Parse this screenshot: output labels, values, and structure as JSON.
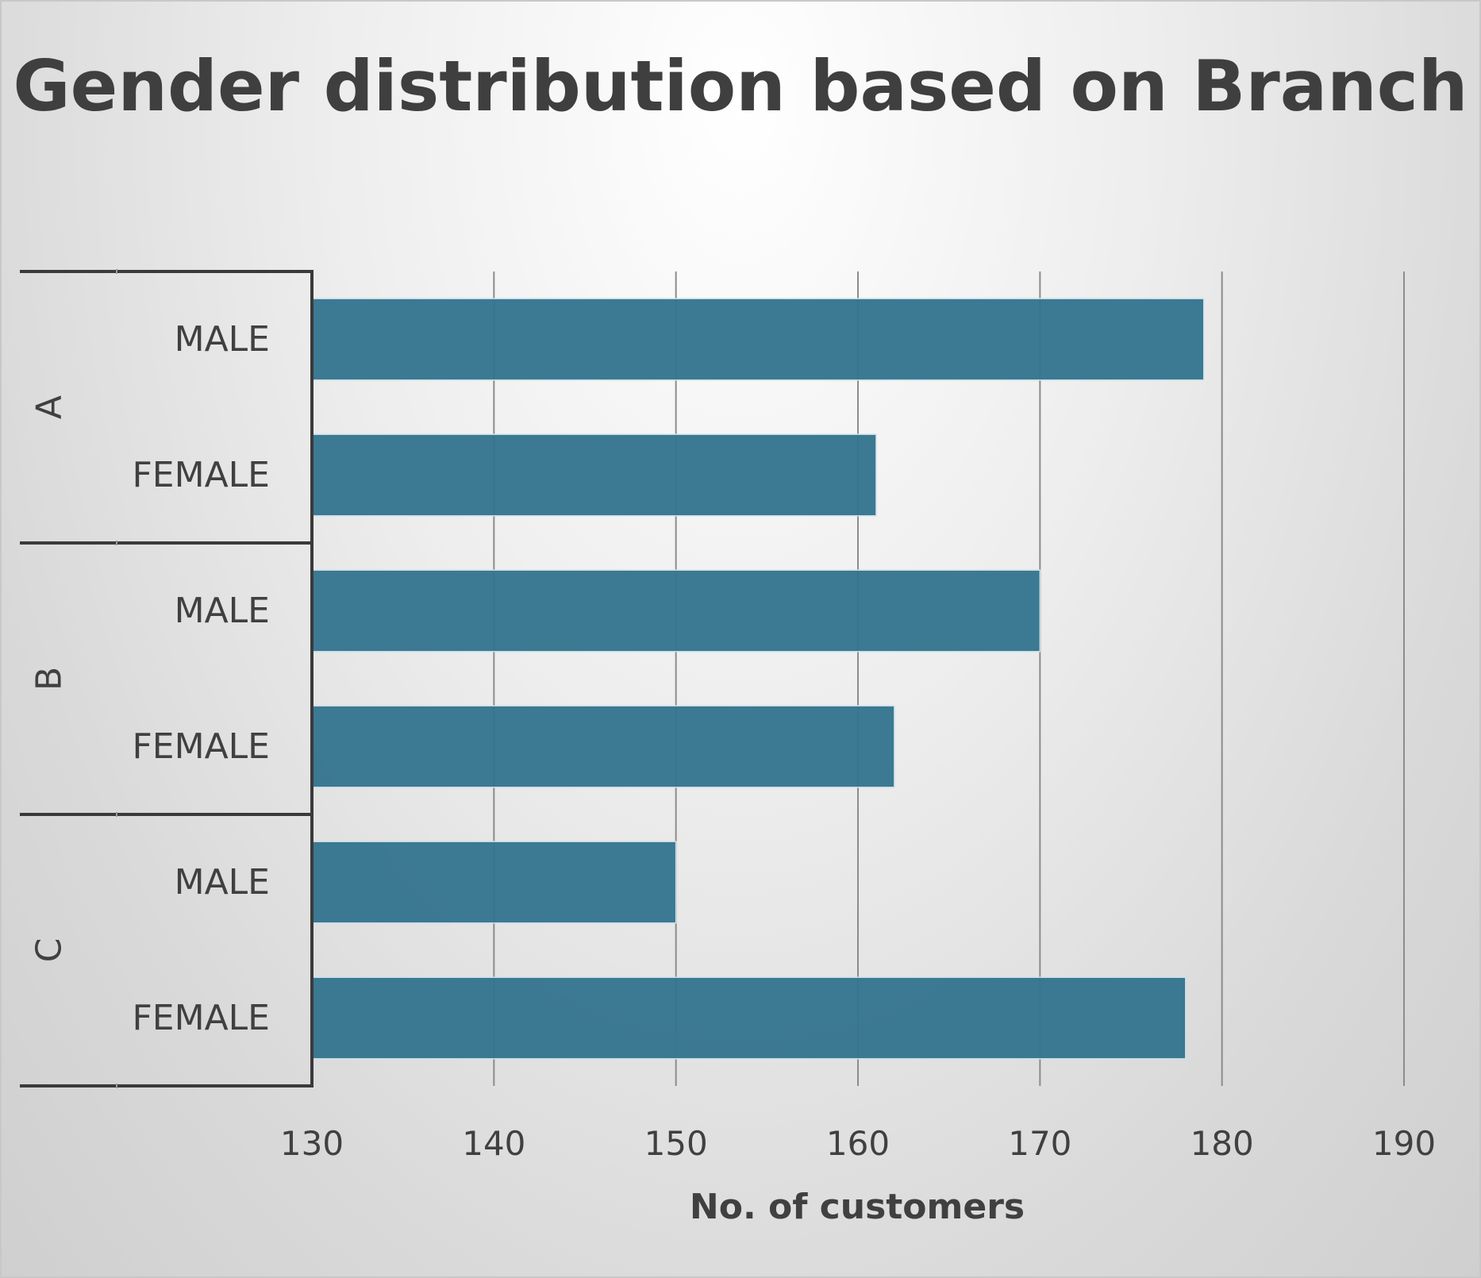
{
  "chart_data": {
    "type": "bar",
    "orientation": "horizontal",
    "title": "Gender distribution based on Branch",
    "xlabel": "No. of customers",
    "ylabel": "",
    "xlim": [
      130,
      190
    ],
    "x_ticks": [
      "130",
      "140",
      "150",
      "160",
      "170",
      "180",
      "190"
    ],
    "grid": true,
    "legend": "none",
    "bar_color": "#36758f",
    "groups": [
      {
        "name": "A",
        "categories": [
          "MALE",
          "FEMALE"
        ],
        "values": [
          179,
          161
        ]
      },
      {
        "name": "B",
        "categories": [
          "MALE",
          "FEMALE"
        ],
        "values": [
          170,
          162
        ]
      },
      {
        "name": "C",
        "categories": [
          "MALE",
          "FEMALE"
        ],
        "values": [
          150,
          178
        ]
      }
    ]
  }
}
